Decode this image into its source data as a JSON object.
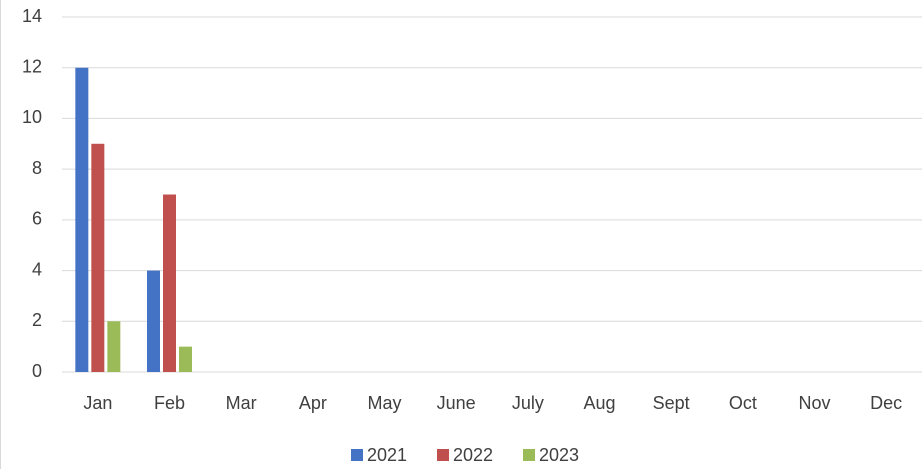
{
  "chart_data": {
    "type": "bar",
    "categories": [
      "Jan",
      "Feb",
      "Mar",
      "Apr",
      "May",
      "June",
      "July",
      "Aug",
      "Sept",
      "Oct",
      "Nov",
      "Dec"
    ],
    "series": [
      {
        "name": "2021",
        "color": "#4472c4",
        "values": [
          12,
          4,
          null,
          null,
          null,
          null,
          null,
          null,
          null,
          null,
          null,
          null
        ]
      },
      {
        "name": "2022",
        "color": "#c0504d",
        "values": [
          9,
          7,
          null,
          null,
          null,
          null,
          null,
          null,
          null,
          null,
          null,
          null
        ]
      },
      {
        "name": "2023",
        "color": "#9bbb59",
        "values": [
          2,
          1,
          null,
          null,
          null,
          null,
          null,
          null,
          null,
          null,
          null,
          null
        ]
      }
    ],
    "ylim": [
      0,
      14
    ],
    "yticks": [
      0,
      2,
      4,
      6,
      8,
      10,
      12,
      14
    ],
    "grid": true,
    "legend": "bottom"
  }
}
